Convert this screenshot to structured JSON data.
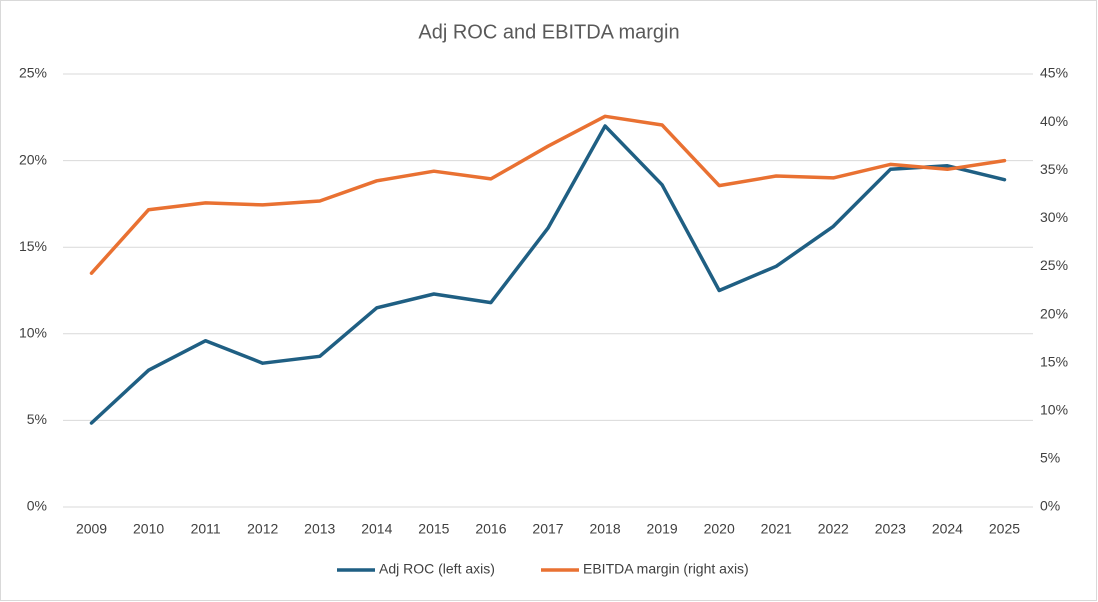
{
  "chart_data": {
    "type": "line",
    "title": "Adj ROC and EBITDA margin",
    "categories": [
      "2009",
      "2010",
      "2011",
      "2012",
      "2013",
      "2014",
      "2015",
      "2016",
      "2017",
      "2018",
      "2019",
      "2020",
      "2021",
      "2022",
      "2023",
      "2024",
      "2025"
    ],
    "series": [
      {
        "name": "Adj ROC (left axis)",
        "color": "#1f5f83",
        "values": [
          4.85,
          7.9,
          9.6,
          8.3,
          8.7,
          11.5,
          12.3,
          11.8,
          16.1,
          22.0,
          18.6,
          12.5,
          13.9,
          16.2,
          19.5,
          19.7,
          18.9
        ]
      },
      {
        "name": "EBITDA margin (right axis)",
        "color": "#e97132",
        "axis": "y2",
        "values": [
          24.3,
          30.9,
          31.6,
          31.4,
          31.8,
          33.9,
          34.9,
          34.1,
          37.5,
          40.6,
          39.7,
          33.4,
          34.4,
          34.2,
          35.6,
          35.1,
          36.0
        ]
      }
    ],
    "ylim": [
      0,
      25
    ],
    "yticks": [
      {
        "value": 0,
        "label": "0%"
      },
      {
        "value": 5,
        "label": "5%"
      },
      {
        "value": 10,
        "label": "10%"
      },
      {
        "value": 15,
        "label": "15%"
      },
      {
        "value": 20,
        "label": "20%"
      },
      {
        "value": 25,
        "label": "25%"
      }
    ],
    "y2lim": [
      0,
      45
    ],
    "y2ticks": [
      {
        "value": 0,
        "label": "0%"
      },
      {
        "value": 5,
        "label": "5%"
      },
      {
        "value": 10,
        "label": "10%"
      },
      {
        "value": 15,
        "label": "15%"
      },
      {
        "value": 20,
        "label": "20%"
      },
      {
        "value": 25,
        "label": "25%"
      },
      {
        "value": 30,
        "label": "30%"
      },
      {
        "value": 35,
        "label": "35%"
      },
      {
        "value": 40,
        "label": "40%"
      },
      {
        "value": 45,
        "label": "45%"
      }
    ],
    "grid": true,
    "legend": "bottom"
  }
}
